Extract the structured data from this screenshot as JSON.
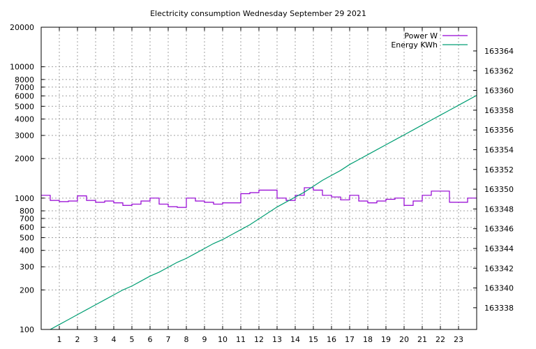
{
  "chart_data": {
    "type": "line",
    "title": "Electricity consumption Wednesday September 29 2021",
    "x": {
      "range": [
        0,
        24
      ],
      "ticks": [
        1,
        2,
        3,
        4,
        5,
        6,
        7,
        8,
        9,
        10,
        11,
        12,
        13,
        14,
        15,
        16,
        17,
        18,
        19,
        20,
        21,
        22,
        23
      ],
      "tick_labels": [
        "1",
        "2",
        "3",
        "4",
        "5",
        "6",
        "7",
        "8",
        "9",
        "10",
        "11",
        "12",
        "13",
        "14",
        "15",
        "16",
        "17",
        "18",
        "19",
        "20",
        "21",
        "22",
        "23"
      ]
    },
    "y_left": {
      "scale": "log",
      "range": [
        100,
        20000
      ],
      "ticks": [
        100,
        200,
        300,
        400,
        500,
        600,
        700,
        800,
        1000,
        2000,
        3000,
        4000,
        5000,
        6000,
        7000,
        8000,
        10000,
        20000
      ],
      "tick_labels": [
        "100",
        "200",
        "300",
        "400",
        "500",
        "600",
        "700",
        "800",
        "1000",
        "2000",
        "3000",
        "4000",
        "5000",
        "6000",
        "7000",
        "8000",
        "10000",
        "20000"
      ]
    },
    "y_right": {
      "scale": "linear",
      "range": [
        163335.8,
        163366.4
      ],
      "ticks": [
        163338,
        163340,
        163342,
        163344,
        163346,
        163348,
        163350,
        163352,
        163354,
        163356,
        163358,
        163360,
        163362,
        163364
      ],
      "tick_labels": [
        "163338",
        "163340",
        "163342",
        "163344",
        "163346",
        "163348",
        "163350",
        "163352",
        "163354",
        "163356",
        "163358",
        "163360",
        "163362",
        "163364"
      ]
    },
    "grid": true,
    "legend_position": "top-right",
    "series": [
      {
        "name": "Power W",
        "axis": "left",
        "style": "steps",
        "color": "#9400d3",
        "x": [
          0,
          0.5,
          1,
          1.5,
          2,
          2.5,
          3,
          3.5,
          4,
          4.5,
          5,
          5.5,
          6,
          6.5,
          7,
          7.5,
          8,
          8.5,
          9,
          9.5,
          10,
          10.5,
          11,
          11.5,
          12,
          12.5,
          13,
          13.5,
          14,
          14.5,
          15,
          15.5,
          16,
          16.5,
          17,
          17.5,
          18,
          18.5,
          19,
          19.5,
          20,
          20.5,
          21,
          21.5,
          22,
          22.5,
          23,
          23.5,
          24
        ],
        "values": [
          1050,
          960,
          940,
          950,
          1040,
          960,
          930,
          950,
          920,
          880,
          900,
          950,
          1000,
          900,
          860,
          850,
          1000,
          950,
          930,
          900,
          920,
          920,
          1080,
          1100,
          1150,
          1150,
          1000,
          960,
          1050,
          1200,
          1150,
          1050,
          1020,
          970,
          1050,
          950,
          920,
          950,
          980,
          1000,
          880,
          950,
          1050,
          1130,
          1130,
          930,
          930,
          1000,
          1000
        ]
      },
      {
        "name": "Energy KWh",
        "axis": "right",
        "style": "line",
        "color": "#009e73",
        "x": [
          0.5,
          1,
          1.5,
          2,
          2.5,
          3,
          3.5,
          4,
          4.5,
          5,
          5.5,
          6,
          6.5,
          7,
          7.5,
          8,
          8.5,
          9,
          9.5,
          10,
          10.5,
          11,
          11.5,
          12,
          12.5,
          13,
          13.5,
          14,
          14.5,
          15,
          15.5,
          16,
          16.5,
          17,
          17.5,
          18,
          18.5,
          19,
          19.5,
          20,
          20.5,
          21,
          21.5,
          22,
          22.5,
          23,
          23.5,
          24
        ],
        "values": [
          163335.8,
          163336.3,
          163336.8,
          163337.3,
          163337.8,
          163338.3,
          163338.8,
          163339.3,
          163339.8,
          163340.2,
          163340.7,
          163341.2,
          163341.6,
          163342.1,
          163342.6,
          163343.0,
          163343.5,
          163344.0,
          163344.5,
          163344.9,
          163345.4,
          163345.9,
          163346.4,
          163347.0,
          163347.6,
          163348.2,
          163348.7,
          163349.2,
          163349.7,
          163350.3,
          163350.9,
          163351.4,
          163351.9,
          163352.5,
          163353.0,
          163353.5,
          163354.0,
          163354.5,
          163355.0,
          163355.5,
          163356.0,
          163356.5,
          163357.0,
          163357.5,
          163358.0,
          163358.5,
          163359.0,
          163359.5
        ]
      }
    ]
  }
}
